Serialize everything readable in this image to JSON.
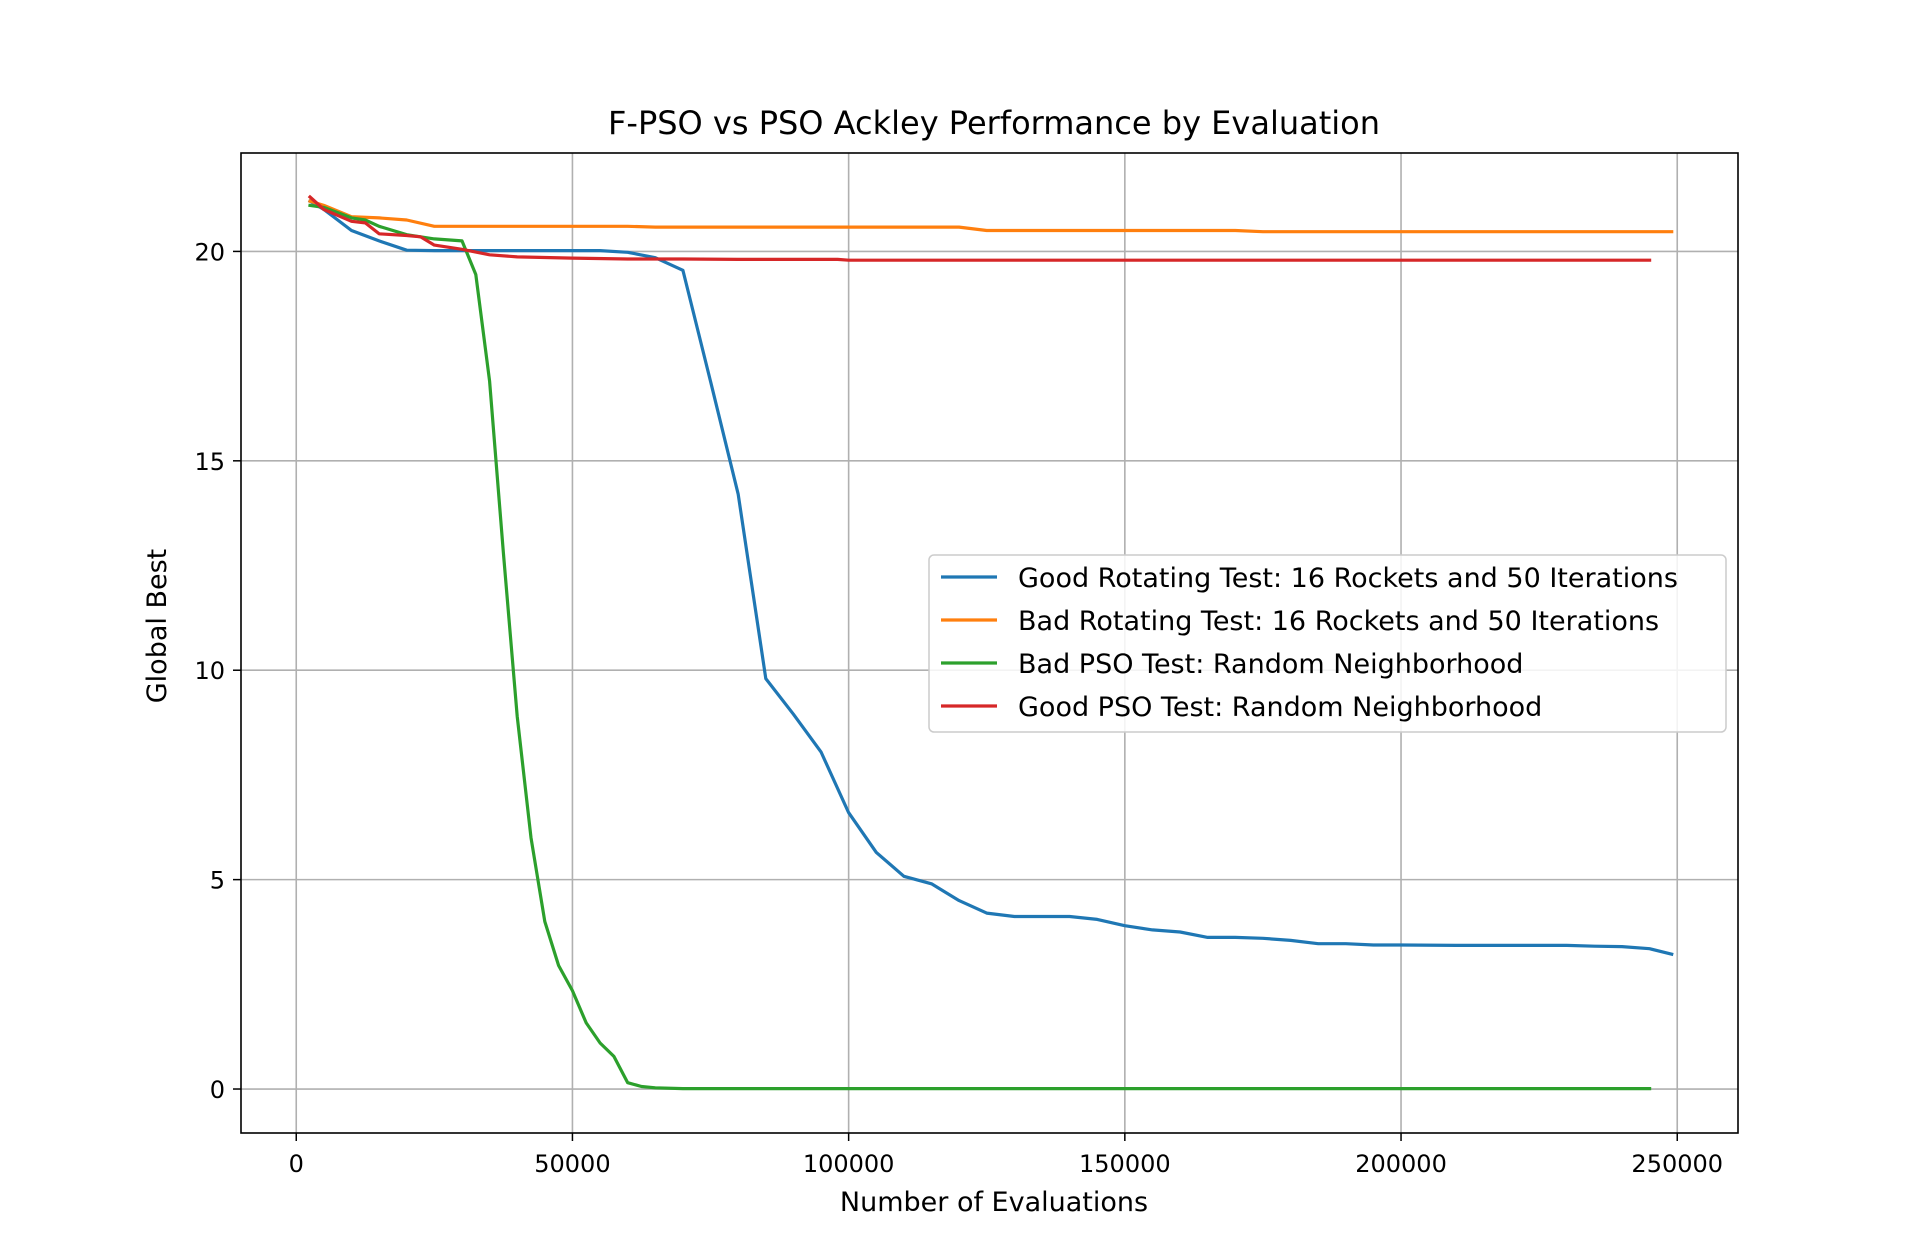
{
  "chart_data": {
    "type": "line",
    "title": "F-PSO vs PSO Ackley Performance by Evaluation",
    "xlabel": "Number of Evaluations",
    "ylabel": "Global Best",
    "xlim": [
      -10000,
      261000
    ],
    "ylim": [
      -1.05,
      22.35
    ],
    "xticks": [
      0,
      50000,
      100000,
      150000,
      200000,
      250000
    ],
    "yticks": [
      0,
      5,
      10,
      15,
      20
    ],
    "grid": true,
    "legend_position": "center-right",
    "series": [
      {
        "name": "Good Rotating Test: 16 Rockets and 50 Iterations",
        "color": "#1f77b4",
        "x": [
          2500,
          5000,
          10000,
          15000,
          20000,
          25000,
          30000,
          40000,
          50000,
          55000,
          60000,
          65000,
          70000,
          75000,
          80000,
          85000,
          90000,
          95000,
          100000,
          105000,
          110000,
          115000,
          120000,
          125000,
          130000,
          135000,
          140000,
          145000,
          150000,
          155000,
          160000,
          165000,
          170000,
          175000,
          180000,
          185000,
          190000,
          195000,
          200000,
          210000,
          220000,
          230000,
          235000,
          240000,
          245000,
          249000
        ],
        "y": [
          21.2,
          21.0,
          20.5,
          20.25,
          20.03,
          20.02,
          20.02,
          20.02,
          20.02,
          20.02,
          19.98,
          19.85,
          19.55,
          16.9,
          14.2,
          9.8,
          8.95,
          8.05,
          6.6,
          5.65,
          5.08,
          4.9,
          4.5,
          4.2,
          4.12,
          4.12,
          4.12,
          4.05,
          3.9,
          3.8,
          3.75,
          3.62,
          3.62,
          3.6,
          3.55,
          3.47,
          3.47,
          3.44,
          3.44,
          3.43,
          3.43,
          3.43,
          3.41,
          3.4,
          3.35,
          3.22
        ]
      },
      {
        "name": "Bad Rotating Test: 16 Rockets and 50 Iterations",
        "color": "#ff7f0e",
        "x": [
          2500,
          5000,
          10000,
          15000,
          20000,
          25000,
          50000,
          60000,
          65000,
          100000,
          120000,
          125000,
          150000,
          170000,
          175000,
          200000,
          225000,
          249000
        ],
        "y": [
          21.2,
          21.1,
          20.83,
          20.8,
          20.75,
          20.6,
          20.6,
          20.6,
          20.58,
          20.58,
          20.58,
          20.5,
          20.5,
          20.5,
          20.47,
          20.47,
          20.47,
          20.47
        ]
      },
      {
        "name": "Bad PSO Test: Random Neighborhood",
        "color": "#2ca02c",
        "x": [
          2500,
          5000,
          10000,
          12500,
          15000,
          20000,
          25000,
          30000,
          32500,
          35000,
          37500,
          40000,
          42500,
          45000,
          47500,
          50000,
          52500,
          55000,
          57500,
          60000,
          62500,
          65000,
          70000,
          80000,
          100000,
          150000,
          200000,
          245000
        ],
        "y": [
          21.1,
          21.05,
          20.8,
          20.75,
          20.6,
          20.4,
          20.3,
          20.25,
          19.45,
          16.9,
          12.8,
          8.9,
          6.0,
          4.0,
          2.95,
          2.35,
          1.58,
          1.1,
          0.78,
          0.15,
          0.06,
          0.03,
          0.01,
          0.01,
          0.01,
          0.01,
          0.01,
          0.01
        ]
      },
      {
        "name": "Good PSO Test: Random Neighborhood",
        "color": "#d62728",
        "x": [
          2500,
          5000,
          10000,
          12500,
          15000,
          20000,
          22500,
          25000,
          30000,
          35000,
          40000,
          50000,
          60000,
          70000,
          80000,
          98000,
          100000,
          150000,
          200000,
          245000
        ],
        "y": [
          21.3,
          21.0,
          20.72,
          20.68,
          20.42,
          20.38,
          20.35,
          20.15,
          20.05,
          19.92,
          19.87,
          19.84,
          19.82,
          19.82,
          19.81,
          19.81,
          19.79,
          19.79,
          19.79,
          19.79
        ]
      }
    ]
  }
}
